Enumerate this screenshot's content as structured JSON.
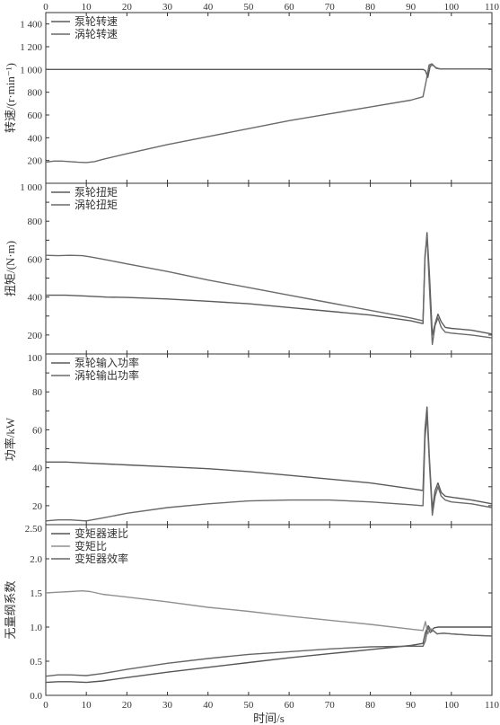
{
  "figure": {
    "xlabel": "时间/s",
    "top_ticks": [
      "0",
      "10",
      "20",
      "30",
      "40",
      "50",
      "60",
      "70",
      "80",
      "90",
      "100",
      "110"
    ]
  },
  "chart_data": [
    {
      "type": "line",
      "ylabel": "转速/(r·min⁻¹)",
      "xlim": [
        0,
        110
      ],
      "ylim": [
        0,
        1500
      ],
      "yticks": [
        0,
        200,
        400,
        600,
        800,
        1000,
        1200,
        1400
      ],
      "ytick_labels": [
        "",
        "200",
        "400",
        "600",
        "800",
        "1 000",
        "1 200",
        "1 400"
      ],
      "series": [
        {
          "name": "泵轮转速",
          "color": "#5a5a5a",
          "x": [
            0,
            93,
            93.6,
            94.2,
            94.8,
            95.5,
            96.3,
            97.5,
            110
          ],
          "y": [
            1000,
            1000,
            990,
            930,
            1030,
            1040,
            1010,
            1005,
            1005
          ]
        },
        {
          "name": "涡轮转速",
          "color": "#6a6a6a",
          "x": [
            0,
            2,
            4,
            6,
            8,
            10,
            12,
            14,
            20,
            30,
            40,
            50,
            60,
            70,
            80,
            90,
            93,
            93.8,
            94.5,
            95.2,
            96,
            97,
            110
          ],
          "y": [
            185,
            195,
            195,
            190,
            185,
            182,
            190,
            210,
            260,
            340,
            410,
            480,
            550,
            610,
            670,
            730,
            760,
            900,
            1040,
            1050,
            1020,
            1005,
            1005
          ]
        }
      ]
    },
    {
      "type": "line",
      "ylabel": "扭矩/(N·m)",
      "xlim": [
        0,
        110
      ],
      "ylim": [
        100,
        1000
      ],
      "yticks": [
        100,
        200,
        300,
        400,
        500,
        600,
        700,
        800,
        900,
        1000
      ],
      "ytick_labels": [
        "",
        "200",
        "",
        "400",
        "",
        "600",
        "",
        "800",
        "",
        "1 000"
      ],
      "series": [
        {
          "name": "泵轮扭矩",
          "color": "#5a5a5a",
          "x": [
            0,
            5,
            10,
            15,
            20,
            30,
            40,
            50,
            60,
            70,
            80,
            90,
            93,
            93.5,
            94,
            94.6,
            95.3,
            96,
            96.7,
            97.5,
            98.5,
            100,
            105,
            110
          ],
          "y": [
            410,
            410,
            405,
            400,
            398,
            390,
            378,
            365,
            345,
            325,
            305,
            275,
            260,
            600,
            740,
            520,
            200,
            260,
            310,
            270,
            240,
            235,
            225,
            205
          ]
        },
        {
          "name": "涡轮扭矩",
          "color": "#6a6a6a",
          "x": [
            0,
            3,
            6,
            9,
            11,
            14,
            20,
            30,
            40,
            50,
            60,
            70,
            80,
            90,
            93,
            93.5,
            94,
            94.6,
            95.3,
            96,
            96.7,
            97.5,
            98.5,
            100,
            105,
            110
          ],
          "y": [
            620,
            618,
            620,
            618,
            612,
            600,
            575,
            535,
            490,
            450,
            410,
            370,
            330,
            290,
            275,
            620,
            720,
            450,
            150,
            250,
            290,
            240,
            215,
            210,
            200,
            185
          ]
        }
      ]
    },
    {
      "type": "line",
      "ylabel": "功率/kW",
      "xlim": [
        0,
        110
      ],
      "ylim": [
        10,
        100
      ],
      "yticks": [
        10,
        20,
        30,
        40,
        50,
        60,
        70,
        80,
        90,
        100
      ],
      "ytick_labels": [
        "",
        "20",
        "",
        "40",
        "",
        "60",
        "",
        "80",
        "",
        "100"
      ],
      "series": [
        {
          "name": "泵轮输入功率",
          "color": "#5a5a5a",
          "x": [
            0,
            5,
            10,
            20,
            30,
            40,
            50,
            60,
            70,
            80,
            90,
            93,
            93.5,
            94,
            94.6,
            95.3,
            96,
            96.7,
            97.5,
            98.5,
            100,
            105,
            110
          ],
          "y": [
            43,
            43,
            42.5,
            41.5,
            40.5,
            39.5,
            38,
            36,
            34,
            32,
            29,
            28,
            60,
            72,
            45,
            18,
            28,
            32,
            27,
            25,
            24.5,
            23,
            21
          ]
        },
        {
          "name": "涡轮输出功率",
          "color": "#6a6a6a",
          "x": [
            0,
            3,
            6,
            10,
            14,
            20,
            30,
            40,
            50,
            60,
            70,
            80,
            90,
            93,
            93.5,
            94,
            94.6,
            95.3,
            96,
            96.7,
            97.5,
            98.5,
            100,
            105,
            110
          ],
          "y": [
            12,
            12.5,
            12.5,
            12,
            13.5,
            16,
            19,
            21,
            22.5,
            23,
            23,
            22,
            20.5,
            20,
            55,
            68,
            42,
            15,
            25,
            30,
            25,
            23,
            22,
            21,
            19
          ]
        }
      ]
    },
    {
      "type": "line",
      "ylabel": "无量纲系数",
      "xlim": [
        0,
        110
      ],
      "ylim": [
        0,
        2.5
      ],
      "yticks": [
        0,
        0.5,
        1.0,
        1.5,
        2.0,
        2.5
      ],
      "ytick_labels": [
        "0.0",
        "0.5",
        "1.0",
        "1.5",
        "2.0",
        "2.50"
      ],
      "series": [
        {
          "name": "变矩器速比",
          "color": "#555555",
          "x": [
            0,
            3,
            6,
            10,
            14,
            20,
            30,
            40,
            50,
            60,
            70,
            80,
            90,
            93,
            93.6,
            94.3,
            95,
            95.8,
            96.8,
            98,
            110
          ],
          "y": [
            0.19,
            0.2,
            0.2,
            0.19,
            0.21,
            0.26,
            0.34,
            0.41,
            0.48,
            0.55,
            0.61,
            0.67,
            0.73,
            0.76,
            0.92,
            1.02,
            0.95,
            0.99,
            1.0,
            1.0,
            1.0
          ]
        },
        {
          "name": "变矩比",
          "color": "#909090",
          "x": [
            0,
            3,
            6,
            9,
            11,
            14,
            20,
            30,
            40,
            50,
            60,
            70,
            80,
            90,
            93,
            93.6,
            94.2,
            94.8,
            95.5,
            96.5,
            98,
            100,
            105,
            110
          ],
          "y": [
            1.5,
            1.51,
            1.52,
            1.53,
            1.52,
            1.48,
            1.44,
            1.37,
            1.29,
            1.23,
            1.16,
            1.1,
            1.04,
            0.97,
            0.95,
            1.08,
            0.9,
            0.98,
            0.95,
            0.9,
            0.91,
            0.9,
            0.88,
            0.87
          ]
        },
        {
          "name": "变矩器效率",
          "color": "#666666",
          "x": [
            0,
            3,
            6,
            10,
            14,
            20,
            30,
            40,
            50,
            60,
            70,
            80,
            90,
            93,
            93.6,
            94.2,
            94.8,
            95.5,
            96.5,
            98,
            100,
            105,
            110
          ],
          "y": [
            0.28,
            0.3,
            0.3,
            0.29,
            0.32,
            0.38,
            0.47,
            0.54,
            0.6,
            0.64,
            0.68,
            0.71,
            0.72,
            0.72,
            0.8,
            1.0,
            0.92,
            0.95,
            0.9,
            0.91,
            0.9,
            0.88,
            0.87
          ]
        }
      ]
    }
  ]
}
